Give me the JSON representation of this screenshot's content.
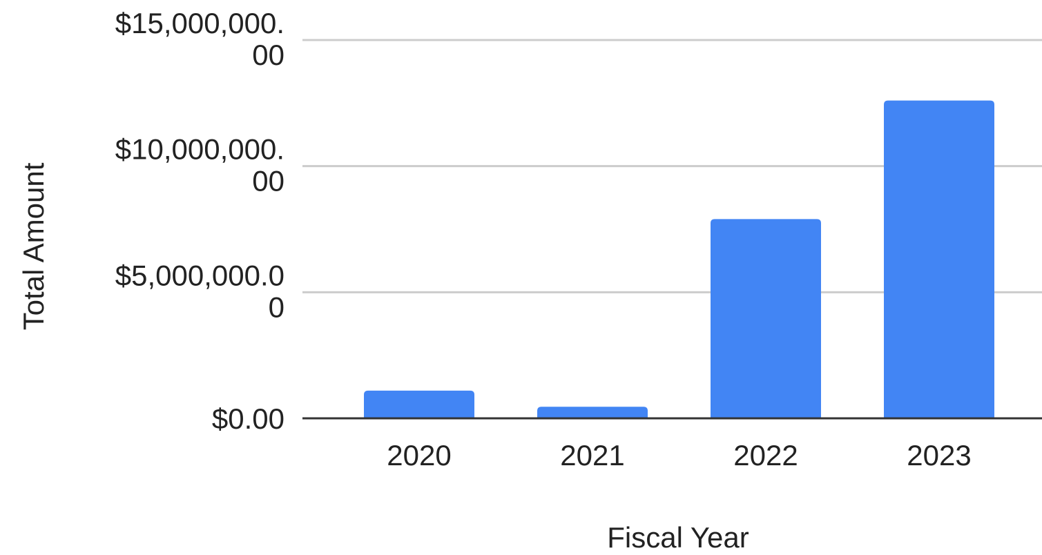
{
  "chart_data": {
    "type": "bar",
    "title": "",
    "xlabel": "Fiscal Year",
    "ylabel": "Total Amount",
    "categories": [
      "2020",
      "2021",
      "2022",
      "2023"
    ],
    "series": [
      {
        "values": [
          1100000,
          460000,
          7900000,
          12600000
        ]
      }
    ],
    "ylim": [
      0,
      15000000
    ],
    "yticks": [
      0,
      5000000,
      10000000,
      15000000
    ],
    "ytick_labels": [
      [
        "$0.00"
      ],
      [
        "$5,000,000.0",
        "0"
      ],
      [
        "$10,000,000.",
        "00"
      ],
      [
        "$15,000,000.",
        "00"
      ]
    ],
    "grid": true,
    "legend": "none",
    "colors": {
      "bar": "#4285f4",
      "grid": "#cccccc",
      "baseline": "#333333",
      "text": "#222222"
    }
  }
}
